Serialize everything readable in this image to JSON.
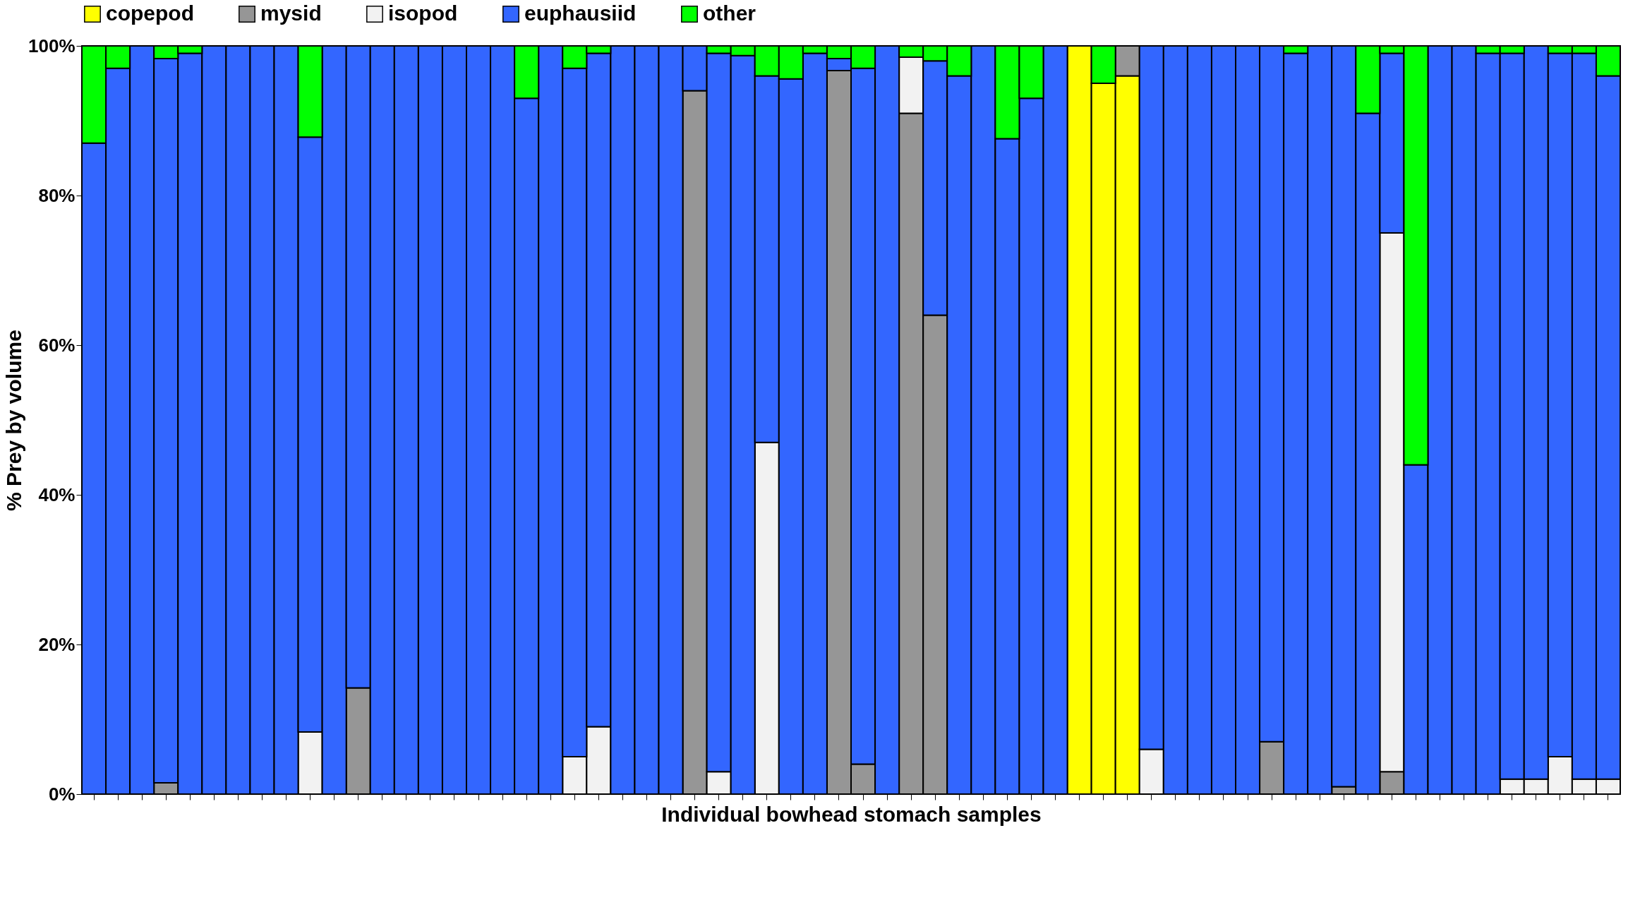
{
  "chart_data": {
    "type": "bar",
    "stacked": true,
    "xlabel": "Individual bowhead stomach samples",
    "ylabel": "% Prey by volume",
    "categories": [
      null,
      null,
      null,
      null,
      null,
      null,
      null,
      null,
      null,
      null,
      null,
      null,
      null,
      null,
      null,
      null,
      null,
      null,
      null,
      null,
      null,
      null,
      null,
      null,
      null,
      null,
      null,
      null,
      null,
      null,
      null,
      null,
      null,
      null,
      null,
      null,
      null,
      null,
      null,
      null,
      null,
      null,
      null,
      null,
      null,
      null,
      null,
      null,
      null,
      null,
      null,
      null,
      null,
      null,
      null,
      null,
      null,
      null,
      null,
      null,
      null,
      null,
      null,
      null
    ],
    "series": [
      {
        "name": "copepod",
        "color": "#ffff00",
        "values": [
          0,
          0,
          0,
          0,
          0,
          0,
          0,
          0,
          0,
          0,
          0,
          0,
          0,
          0,
          0,
          0,
          0,
          0,
          0,
          0,
          0,
          0,
          0,
          0,
          0,
          0,
          0,
          0,
          0,
          0,
          0,
          0,
          0,
          0,
          0,
          0,
          0,
          0,
          0,
          0,
          0,
          100,
          95,
          96,
          0,
          0,
          0,
          0,
          0,
          0,
          0,
          0,
          0,
          0,
          0,
          0,
          0,
          0,
          0,
          0,
          0,
          0,
          0,
          0
        ]
      },
      {
        "name": "mysid",
        "color": "#969696",
        "values": [
          0,
          0,
          0,
          1.5,
          0,
          0,
          0,
          0,
          0,
          0,
          0,
          14.2,
          0,
          0,
          0,
          0,
          0,
          0,
          0,
          0,
          0,
          0,
          0,
          0,
          0,
          94,
          0,
          0,
          0,
          0,
          0,
          96.7,
          4,
          0,
          91,
          64,
          0,
          0,
          0,
          0,
          0,
          0,
          0,
          4,
          0,
          0,
          0,
          0,
          0,
          7,
          0,
          0,
          1,
          0,
          3,
          0,
          0,
          0,
          0,
          0,
          0,
          0,
          0,
          0
        ]
      },
      {
        "name": "isopod",
        "color": "#f2f2f2",
        "values": [
          0,
          0,
          0,
          0,
          0,
          0,
          0,
          0,
          0,
          8.3,
          0,
          0,
          0,
          0,
          0,
          0,
          0,
          0,
          0,
          0,
          5,
          9,
          0,
          0,
          0,
          0,
          3,
          0,
          47,
          0,
          0,
          0,
          0,
          0,
          7.5,
          0,
          0,
          0,
          0,
          0,
          0,
          0,
          0,
          0,
          6,
          0,
          0,
          0,
          0,
          0,
          0,
          0,
          0,
          0,
          72,
          0,
          0,
          0,
          0,
          2,
          2,
          5,
          2,
          2
        ]
      },
      {
        "name": "euphausiid",
        "color": "#3366ff",
        "values": [
          87,
          97,
          100,
          96.8,
          99,
          100,
          100,
          100,
          100,
          79.5,
          100,
          85.8,
          100,
          100,
          100,
          100,
          100,
          100,
          93,
          100,
          92,
          90,
          100,
          100,
          100,
          6,
          96,
          98.7,
          49,
          95.6,
          99,
          1.6,
          93,
          100,
          0,
          34,
          96,
          100,
          87.6,
          93,
          100,
          0,
          0,
          0,
          94,
          100,
          100,
          100,
          100,
          93,
          99,
          100,
          99,
          91,
          24,
          44,
          100,
          100,
          99,
          97,
          98,
          94,
          97,
          94
        ]
      },
      {
        "name": "other",
        "color": "#00ff00",
        "values": [
          13,
          3,
          0,
          1.7,
          1,
          0,
          0,
          0,
          0,
          12.2,
          0,
          0,
          0,
          0,
          0,
          0,
          0,
          0,
          7,
          0,
          3,
          1,
          0,
          0,
          0,
          0,
          1,
          1.3,
          4,
          4.4,
          1,
          1.7,
          3,
          0,
          1.5,
          2,
          4,
          0,
          12.4,
          7,
          0,
          0,
          5,
          0,
          0,
          0,
          0,
          0,
          0,
          0,
          1,
          0,
          0,
          9,
          1,
          56,
          0,
          0,
          1,
          1,
          0,
          1,
          1,
          4
        ]
      }
    ],
    "ylim": [
      0,
      100
    ],
    "yticks": [
      {
        "value": 0,
        "label": "0%"
      },
      {
        "value": 20,
        "label": "20%"
      },
      {
        "value": 40,
        "label": "40%"
      },
      {
        "value": 60,
        "label": "60%"
      },
      {
        "value": 80,
        "label": "80%"
      },
      {
        "value": 100,
        "label": "100%"
      }
    ],
    "legend": "top left"
  }
}
